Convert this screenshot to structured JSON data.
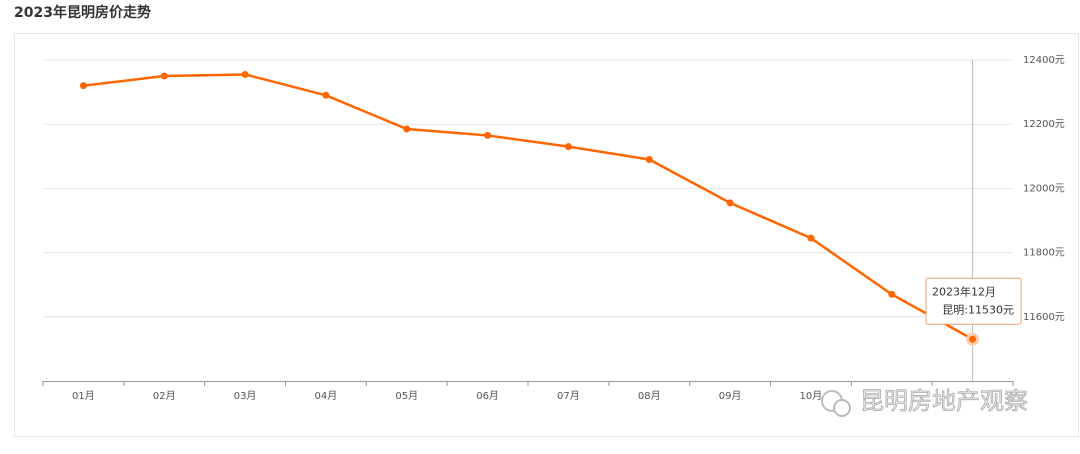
{
  "chart_data": {
    "type": "line",
    "title": "2023年昆明房价走势",
    "categories": [
      "01月",
      "02月",
      "03月",
      "04月",
      "05月",
      "06月",
      "07月",
      "08月",
      "09月",
      "10月",
      null,
      null
    ],
    "values": [
      12320,
      12350,
      12355,
      12290,
      12185,
      12165,
      12130,
      12090,
      11955,
      11845,
      11670,
      11530
    ],
    "value_labels": [
      null,
      null,
      null,
      null,
      null,
      null,
      null,
      null,
      null,
      null,
      null,
      "昆明:11530元"
    ],
    "color": "#ff6600",
    "ylim": [
      11400,
      12400
    ],
    "yticks": [
      {
        "value": 11600,
        "label": "11600元"
      },
      {
        "value": 11800,
        "label": "11800元"
      },
      {
        "value": 12000,
        "label": "12000元"
      },
      {
        "value": 12200,
        "label": "12200元"
      },
      {
        "value": 12400,
        "label": "12400元"
      }
    ],
    "grid": true,
    "tooltip": {
      "title": "2023年12月"
    },
    "watermark": "昆明房地产观察"
  }
}
